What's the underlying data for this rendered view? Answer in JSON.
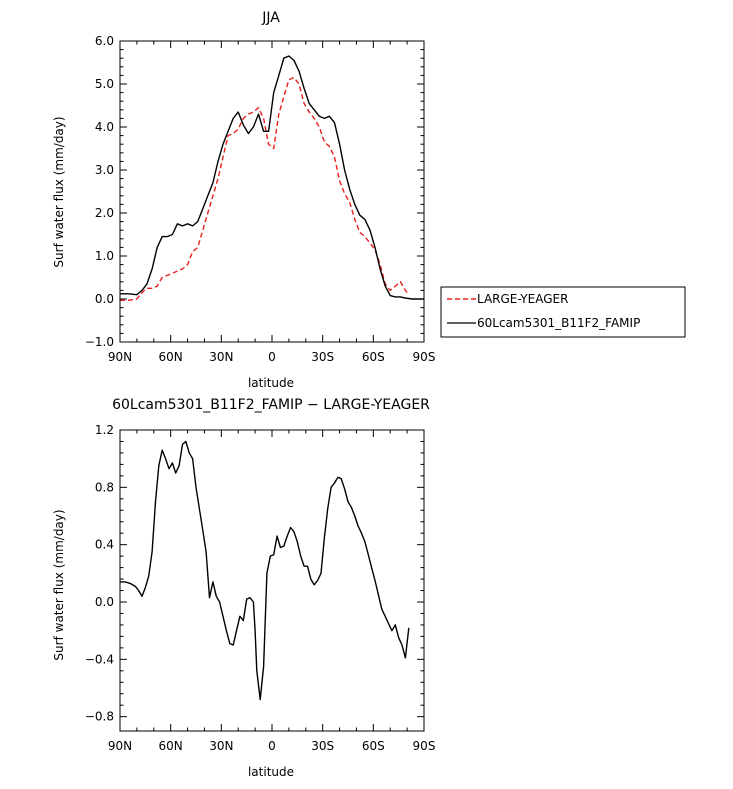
{
  "chart_data": [
    {
      "type": "line",
      "title": "JJA",
      "xlabel": "latitude",
      "ylabel": "Surf water flux (mm/day)",
      "xlim": [
        -90,
        90
      ],
      "ylim": [
        -1.0,
        6.0
      ],
      "xticks": [
        -90,
        -60,
        -30,
        0,
        30,
        60,
        90
      ],
      "xticklabels": [
        "90N",
        "60N",
        "30N",
        "0",
        "30S",
        "60S",
        "90S"
      ],
      "yticks": [
        -1.0,
        0.0,
        1.0,
        2.0,
        3.0,
        4.0,
        5.0,
        6.0
      ],
      "yticklabels": [
        "−1.0",
        "0.0",
        "1.0",
        "2.0",
        "3.0",
        "4.0",
        "5.0",
        "6.0"
      ],
      "legend_position": "outside-right",
      "series": [
        {
          "name": "LARGE-YEAGER",
          "color": "#e8201e",
          "dash": "dashed",
          "x": [
            -90,
            -85,
            -80,
            -77,
            -74,
            -71,
            -68,
            -65,
            -62,
            -59,
            -56,
            -53,
            -50,
            -47,
            -44,
            -41,
            -38,
            -35,
            -32,
            -29,
            -26,
            -23,
            -20,
            -17,
            -14,
            -11,
            -8,
            -5,
            -2,
            1,
            4,
            7,
            10,
            13,
            16,
            19,
            22,
            25,
            28,
            31,
            34,
            37,
            40,
            43,
            46,
            49,
            52,
            55,
            58,
            61,
            64,
            67,
            70,
            73,
            76,
            79,
            80
          ],
          "values": [
            -0.03,
            -0.03,
            0.0,
            0.15,
            0.25,
            0.25,
            0.3,
            0.5,
            0.55,
            0.6,
            0.65,
            0.7,
            0.8,
            1.1,
            1.2,
            1.6,
            2.0,
            2.4,
            2.8,
            3.3,
            3.8,
            3.85,
            3.95,
            4.2,
            4.3,
            4.35,
            4.45,
            4.2,
            3.6,
            3.5,
            4.3,
            4.7,
            5.1,
            5.15,
            5.0,
            4.55,
            4.35,
            4.2,
            4.0,
            3.65,
            3.55,
            3.3,
            2.75,
            2.45,
            2.25,
            1.85,
            1.55,
            1.45,
            1.3,
            1.15,
            0.8,
            0.35,
            0.2,
            0.3,
            0.4,
            0.2,
            0.15
          ]
        },
        {
          "name": "60Lcam5301_B11F2_FAMIP",
          "color": "#000000",
          "dash": "solid",
          "x": [
            -90,
            -85,
            -80,
            -77,
            -74,
            -71,
            -68,
            -65,
            -62,
            -59,
            -56,
            -53,
            -50,
            -47,
            -44,
            -41,
            -38,
            -35,
            -32,
            -29,
            -26,
            -23,
            -20,
            -17,
            -14,
            -11,
            -8,
            -5,
            -2,
            1,
            4,
            7,
            10,
            13,
            16,
            19,
            22,
            25,
            28,
            31,
            34,
            37,
            40,
            43,
            46,
            49,
            52,
            55,
            58,
            61,
            64,
            67,
            70,
            73,
            76,
            79,
            83,
            87,
            90
          ],
          "values": [
            0.12,
            0.12,
            0.1,
            0.2,
            0.35,
            0.7,
            1.2,
            1.45,
            1.45,
            1.5,
            1.75,
            1.7,
            1.75,
            1.7,
            1.8,
            2.1,
            2.4,
            2.7,
            3.2,
            3.6,
            3.9,
            4.2,
            4.35,
            4.05,
            3.85,
            4.0,
            4.3,
            3.9,
            3.9,
            4.8,
            5.2,
            5.6,
            5.65,
            5.55,
            5.3,
            4.9,
            4.55,
            4.4,
            4.25,
            4.2,
            4.25,
            4.1,
            3.6,
            3.0,
            2.55,
            2.2,
            1.95,
            1.85,
            1.6,
            1.2,
            0.7,
            0.3,
            0.08,
            0.05,
            0.05,
            0.02,
            0.0,
            0.0,
            0.0
          ]
        }
      ]
    },
    {
      "type": "line",
      "title": "60Lcam5301_B11F2_FAMIP − LARGE-YEAGER",
      "xlabel": "latitude",
      "ylabel": "Surf water flux (mm/day)",
      "xlim": [
        -90,
        90
      ],
      "ylim": [
        -0.9,
        1.2
      ],
      "xticks": [
        -90,
        -60,
        -30,
        0,
        30,
        60,
        90
      ],
      "xticklabels": [
        "90N",
        "60N",
        "30N",
        "0",
        "30S",
        "60S",
        "90S"
      ],
      "yticks": [
        -0.8,
        -0.4,
        0.0,
        0.4,
        0.8,
        1.2
      ],
      "yticklabels": [
        "−0.8",
        "−0.4",
        "0.0",
        "0.4",
        "0.8",
        "1.2"
      ],
      "series": [
        {
          "color": "#000000",
          "dash": "solid",
          "x": [
            -90,
            -87,
            -84,
            -81,
            -79,
            -77,
            -75,
            -73,
            -71,
            -69,
            -67,
            -65,
            -63,
            -61,
            -59,
            -57,
            -55,
            -53,
            -51,
            -49,
            -47,
            -45,
            -43,
            -41,
            -39,
            -37,
            -35,
            -33,
            -31,
            -29,
            -27,
            -25,
            -23,
            -21,
            -19,
            -17,
            -15,
            -13,
            -11,
            -10,
            -9,
            -7,
            -5,
            -3,
            -1,
            1,
            3,
            5,
            7,
            9,
            11,
            13,
            15,
            17,
            19,
            21,
            23,
            25,
            27,
            29,
            31,
            33,
            35,
            37,
            39,
            41,
            43,
            45,
            47,
            49,
            51,
            53,
            55,
            57,
            59,
            61,
            63,
            65,
            67,
            69,
            71,
            73,
            75,
            77,
            79,
            81
          ],
          "values": [
            0.14,
            0.14,
            0.13,
            0.11,
            0.08,
            0.04,
            0.1,
            0.18,
            0.35,
            0.7,
            0.95,
            1.06,
            1.0,
            0.93,
            0.97,
            0.9,
            0.95,
            1.1,
            1.12,
            1.04,
            1.0,
            0.8,
            0.65,
            0.5,
            0.35,
            0.03,
            0.14,
            0.04,
            0.0,
            -0.1,
            -0.2,
            -0.29,
            -0.3,
            -0.2,
            -0.1,
            -0.13,
            0.02,
            0.03,
            0.0,
            -0.2,
            -0.48,
            -0.68,
            -0.45,
            0.2,
            0.32,
            0.33,
            0.46,
            0.38,
            0.39,
            0.46,
            0.52,
            0.49,
            0.42,
            0.32,
            0.25,
            0.25,
            0.16,
            0.12,
            0.15,
            0.2,
            0.45,
            0.65,
            0.8,
            0.83,
            0.87,
            0.86,
            0.79,
            0.7,
            0.66,
            0.6,
            0.53,
            0.48,
            0.42,
            0.33,
            0.24,
            0.15,
            0.05,
            -0.05,
            -0.1,
            -0.15,
            -0.2,
            -0.16,
            -0.25,
            -0.3,
            -0.39,
            -0.18
          ]
        }
      ]
    }
  ]
}
